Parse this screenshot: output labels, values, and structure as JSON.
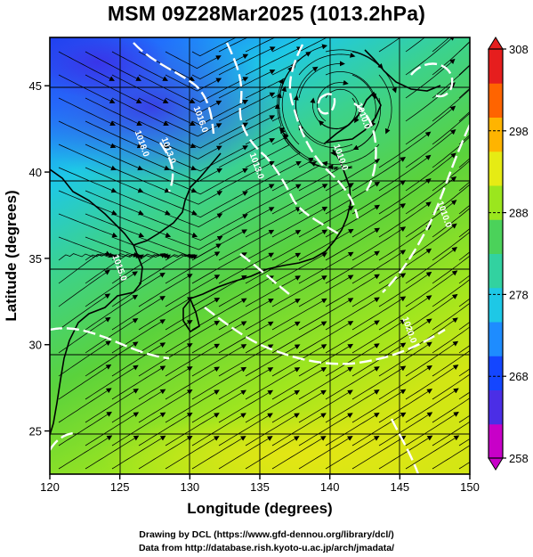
{
  "title": "MSM 09Z28Mar2025 (1013.2hPa)",
  "x_axis": {
    "label": "Longitude (degrees)",
    "ticks": [
      120,
      125,
      130,
      135,
      140,
      145,
      150
    ],
    "range": [
      120,
      150
    ]
  },
  "y_axis": {
    "label": "Latitude  (degrees)",
    "ticks": [
      25,
      30,
      35,
      40,
      45
    ],
    "range": [
      22.5,
      47.8
    ]
  },
  "colorbar": {
    "range": [
      258,
      308
    ],
    "ticks": [
      258,
      268,
      278,
      288,
      298,
      308
    ],
    "colors": [
      "#c800c8",
      "#4b2ee6",
      "#1446ff",
      "#1e8cff",
      "#1ec8e6",
      "#32d2a0",
      "#4bd25a",
      "#9be61e",
      "#e6eb14",
      "#ffb400",
      "#ff6400",
      "#e61e1e"
    ]
  },
  "contour_labels": [
    {
      "text": "1018.0",
      "lon": 126.4,
      "lat": 41.6
    },
    {
      "text": "1013.0",
      "lon": 128.3,
      "lat": 41.2
    },
    {
      "text": "1016.0",
      "lon": 130.6,
      "lat": 43.0
    },
    {
      "text": "1013.0",
      "lon": 134.6,
      "lat": 40.3
    },
    {
      "text": "1010.0",
      "lon": 142.2,
      "lat": 43.2
    },
    {
      "text": "1010.0",
      "lon": 140.6,
      "lat": 40.8
    },
    {
      "text": "1010.0",
      "lon": 148.0,
      "lat": 37.5
    },
    {
      "text": "1015.0",
      "lon": 124.8,
      "lat": 34.4
    },
    {
      "text": "1020.0",
      "lon": 145.5,
      "lat": 30.8
    }
  ],
  "footer": {
    "line1": "Drawing by DCL (https://www.gfd-dennou.org/library/dcl/)",
    "line2": "Data from http://database.rish.kyoto-u.ac.jp/arch/jmadata/"
  }
}
